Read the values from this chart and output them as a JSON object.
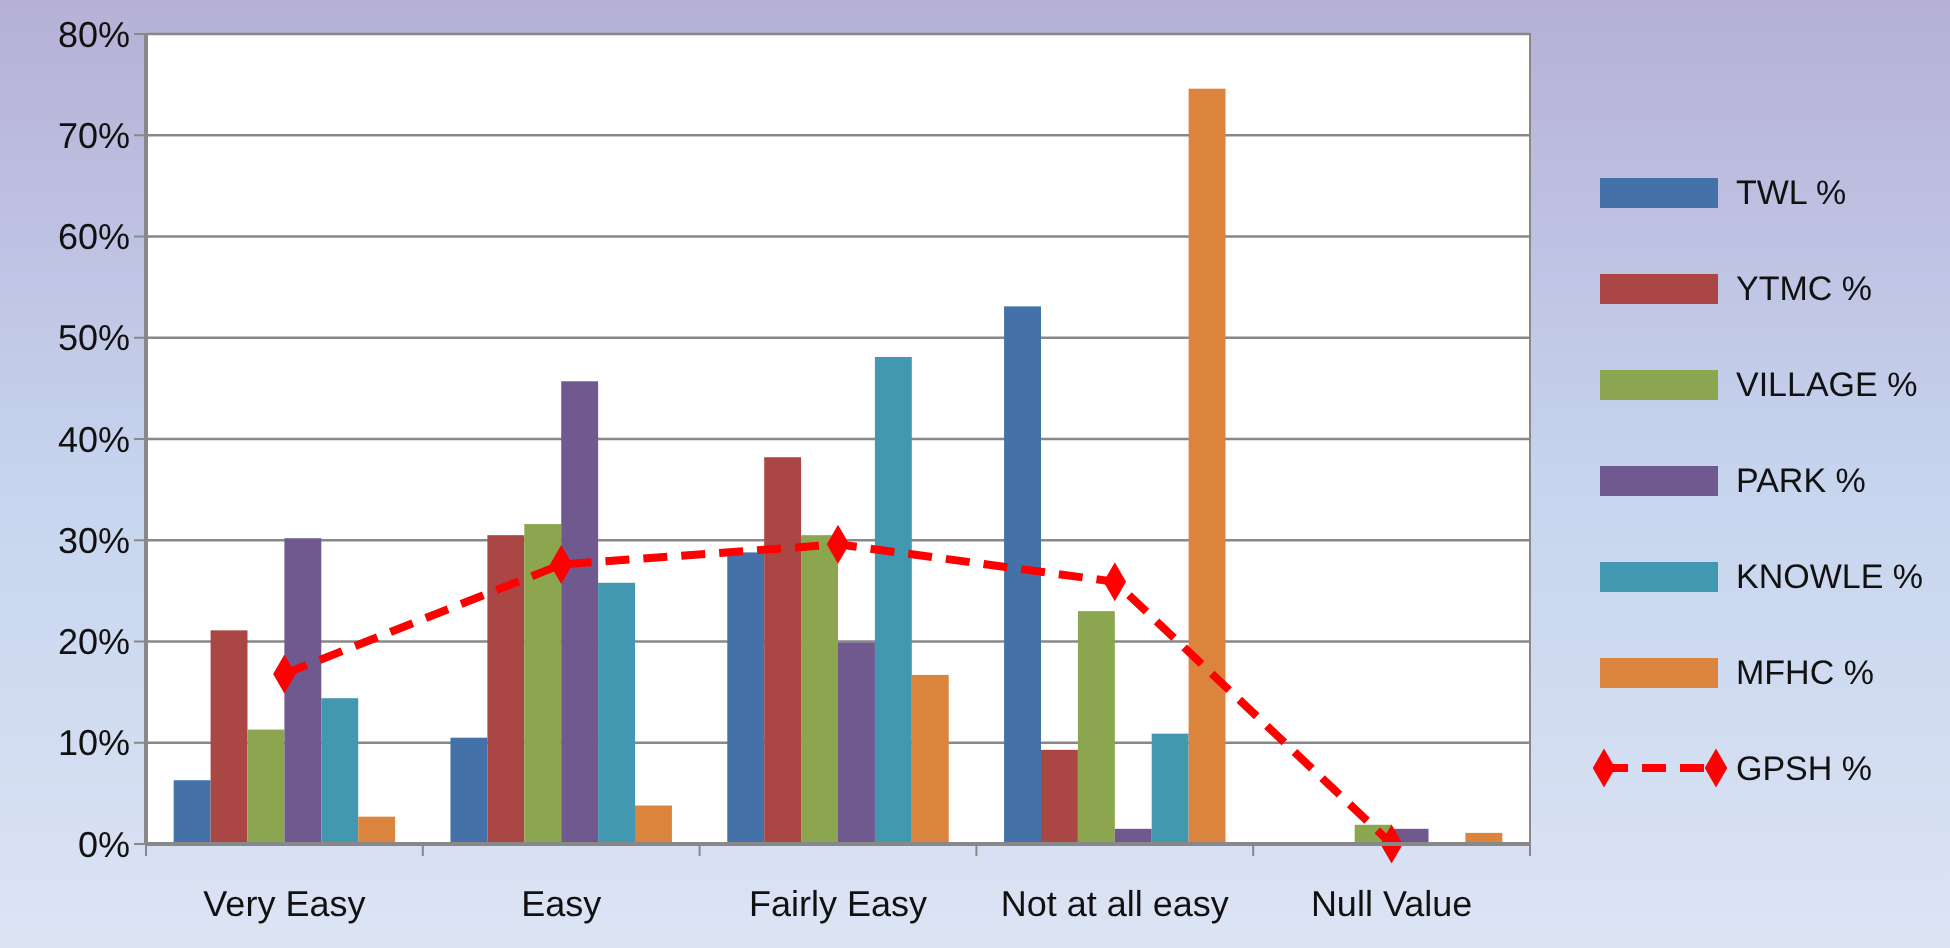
{
  "chart_data": {
    "type": "bar",
    "categories": [
      "Very Easy",
      "Easy",
      "Fairly Easy",
      "Not at all easy",
      "Null Value"
    ],
    "series": [
      {
        "name": "TWL %",
        "color": "#4472a8",
        "values": [
          6.3,
          10.5,
          28.8,
          53.1,
          0
        ]
      },
      {
        "name": "YTMC %",
        "color": "#aa4644",
        "values": [
          21.1,
          30.5,
          38.2,
          9.3,
          0
        ]
      },
      {
        "name": "VILLAGE %",
        "color": "#8ba64f",
        "values": [
          11.3,
          31.6,
          30.5,
          23.0,
          1.9
        ]
      },
      {
        "name": "PARK %",
        "color": "#70598f",
        "values": [
          30.2,
          45.7,
          19.9,
          1.5,
          1.5
        ]
      },
      {
        "name": "KNOWLE %",
        "color": "#4298b0",
        "values": [
          14.4,
          25.8,
          48.1,
          10.9,
          0
        ]
      },
      {
        "name": "MFHC %",
        "color": "#db843d",
        "values": [
          2.7,
          3.8,
          16.7,
          74.6,
          1.1
        ]
      },
      {
        "name": "GPSH %",
        "color": "#ff0000",
        "type": "line",
        "marker": "diamond",
        "line_style": "dashed",
        "values": [
          16.8,
          27.6,
          29.6,
          25.9,
          0
        ]
      }
    ],
    "ylim": [
      0,
      80
    ],
    "yticks": [
      {
        "value": 0,
        "label": "0%"
      },
      {
        "value": 10,
        "label": "10%"
      },
      {
        "value": 20,
        "label": "20%"
      },
      {
        "value": 30,
        "label": "30%"
      },
      {
        "value": 40,
        "label": "40%"
      },
      {
        "value": 50,
        "label": "50%"
      },
      {
        "value": 60,
        "label": "60%"
      },
      {
        "value": 70,
        "label": "70%"
      },
      {
        "value": 80,
        "label": "80%"
      }
    ],
    "grid": "y",
    "legend": "right"
  }
}
